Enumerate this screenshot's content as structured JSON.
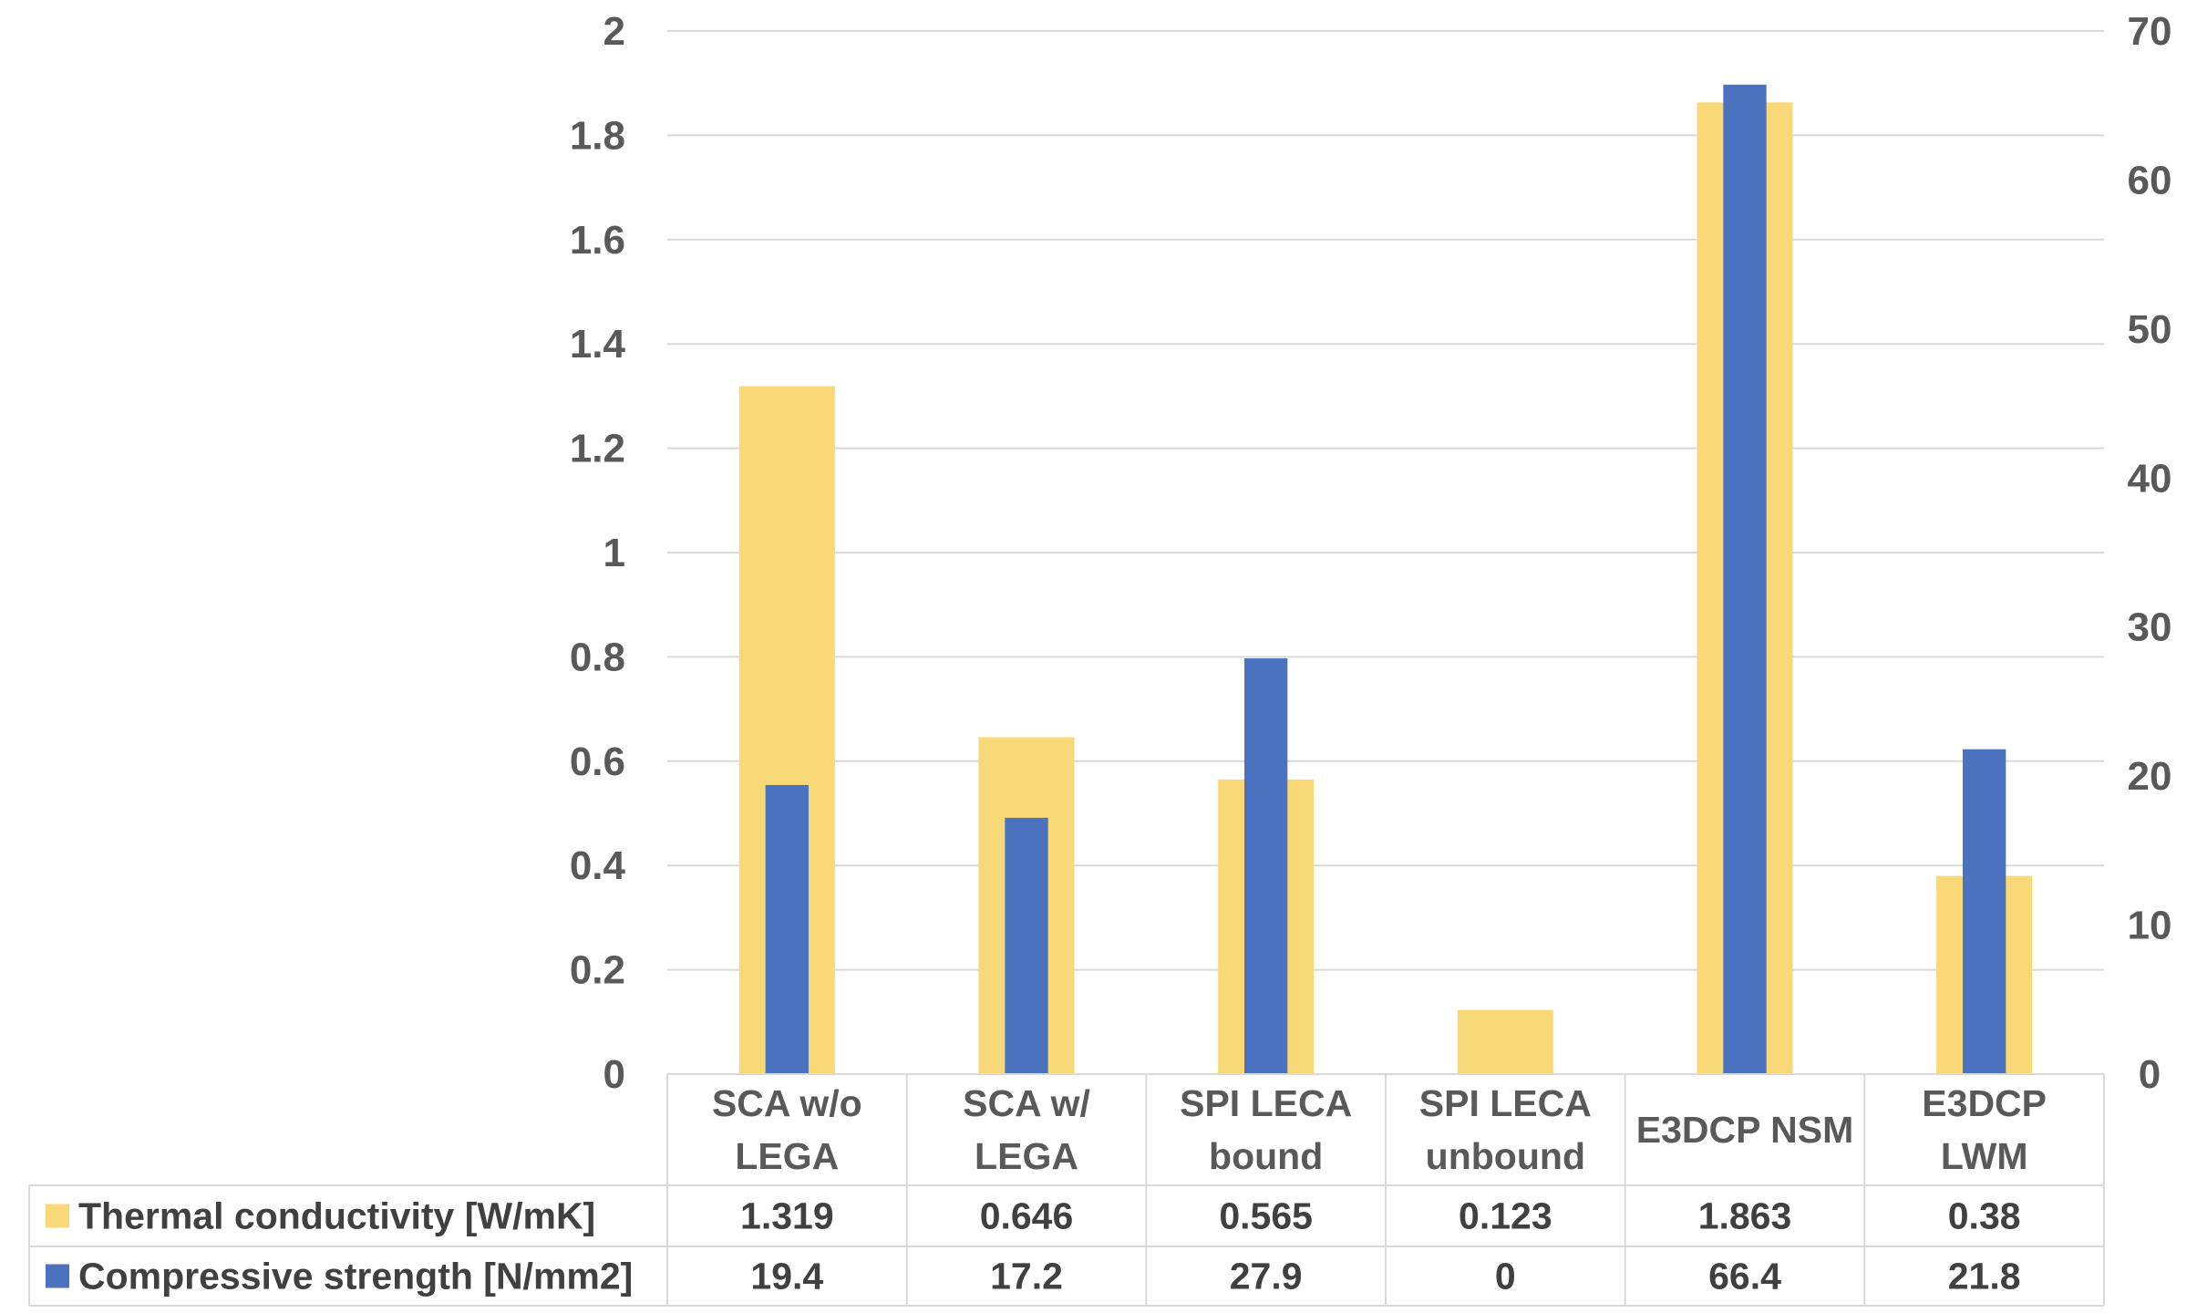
{
  "chart_data": {
    "type": "bar",
    "categories": [
      [
        "SCA w/o",
        "LEGA"
      ],
      [
        "SCA w/",
        "LEGA"
      ],
      [
        "SPI LECA",
        "bound"
      ],
      [
        "SPI LECA",
        "unbound"
      ],
      [
        "E3DCP NSM"
      ],
      [
        "E3DCP",
        "LWM"
      ]
    ],
    "series": [
      {
        "name": "Thermal conductivity [W/mK]",
        "color": "#F9D977",
        "axis": "left",
        "values": [
          1.319,
          0.646,
          0.565,
          0.123,
          1.863,
          0.38
        ],
        "labels": [
          "1.319",
          "0.646",
          "0.565",
          "0.123",
          "1.863",
          "0.38"
        ]
      },
      {
        "name": "Compressive strength [N/mm2]",
        "color": "#4A72BE",
        "axis": "right",
        "values": [
          19.4,
          17.2,
          27.9,
          0,
          66.4,
          21.8
        ],
        "labels": [
          "19.4",
          "17.2",
          "27.9",
          "0",
          "66.4",
          "21.8"
        ]
      }
    ],
    "y_left": {
      "min": 0,
      "max": 2,
      "ticks": [
        "0",
        "0.2",
        "0.4",
        "0.6",
        "0.8",
        "1",
        "1.2",
        "1.4",
        "1.6",
        "1.8",
        "2"
      ]
    },
    "y_right": {
      "min": 0,
      "max": 70,
      "ticks": [
        "0",
        "10",
        "20",
        "30",
        "40",
        "50",
        "60",
        "70"
      ]
    },
    "grid": true,
    "legend": "data-table"
  }
}
